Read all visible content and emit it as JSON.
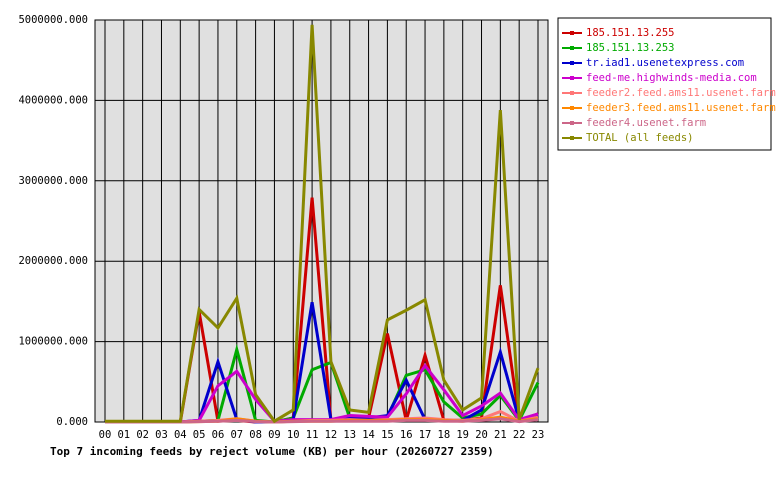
{
  "chart_data": {
    "type": "line",
    "title": "Top 7 incoming feeds by reject volume (KB) per hour (20260727 2359)",
    "categories": [
      "00",
      "01",
      "02",
      "03",
      "04",
      "05",
      "06",
      "07",
      "08",
      "09",
      "10",
      "11",
      "12",
      "13",
      "14",
      "15",
      "16",
      "17",
      "18",
      "19",
      "20",
      "21",
      "22",
      "23"
    ],
    "ylim": [
      0,
      5000000
    ],
    "yticks": [
      {
        "value": 0,
        "label": "0.000"
      },
      {
        "value": 1000000,
        "label": "1000000.000"
      },
      {
        "value": 2000000,
        "label": "2000000.000"
      },
      {
        "value": 3000000,
        "label": "3000000.000"
      },
      {
        "value": 4000000,
        "label": "4000000.000"
      },
      {
        "value": 5000000,
        "label": "5000000.000"
      }
    ],
    "grid": true,
    "legend": "right",
    "series": [
      {
        "name": "185.151.13.255",
        "color": "#cc0000",
        "values": [
          0,
          0,
          0,
          0,
          0,
          1370000,
          10000,
          20000,
          0,
          0,
          50000,
          2790000,
          20000,
          50000,
          50000,
          1100000,
          20000,
          830000,
          20000,
          20000,
          50000,
          1700000,
          20000,
          100000
        ]
      },
      {
        "name": "185.151.13.253",
        "color": "#00aa00",
        "values": [
          0,
          0,
          0,
          0,
          0,
          10000,
          20000,
          900000,
          20000,
          0,
          50000,
          650000,
          740000,
          50000,
          60000,
          60000,
          580000,
          650000,
          250000,
          50000,
          100000,
          330000,
          20000,
          490000
        ]
      },
      {
        "name": "tr.iad1.usenetexpress.com",
        "color": "#0000cc",
        "values": [
          0,
          0,
          0,
          0,
          0,
          20000,
          750000,
          30000,
          0,
          0,
          30000,
          1490000,
          30000,
          50000,
          50000,
          80000,
          520000,
          30000,
          20000,
          20000,
          150000,
          870000,
          20000,
          80000
        ]
      },
      {
        "name": "feed-me.highwinds-media.com",
        "color": "#cc00cc",
        "values": [
          0,
          0,
          0,
          0,
          0,
          20000,
          450000,
          630000,
          280000,
          10000,
          30000,
          30000,
          30000,
          80000,
          70000,
          60000,
          350000,
          700000,
          400000,
          80000,
          200000,
          360000,
          30000,
          100000
        ]
      },
      {
        "name": "feeder2.feed.ams11.usenet.farm",
        "color": "#ff7777",
        "values": [
          0,
          0,
          0,
          0,
          0,
          10000,
          20000,
          40000,
          10000,
          0,
          10000,
          20000,
          20000,
          30000,
          20000,
          30000,
          40000,
          50000,
          30000,
          20000,
          40000,
          130000,
          10000,
          60000
        ]
      },
      {
        "name": "feeder3.feed.ams11.usenet.farm",
        "color": "#ff8800",
        "values": [
          0,
          0,
          0,
          0,
          0,
          5000,
          10000,
          40000,
          10000,
          0,
          10000,
          10000,
          10000,
          20000,
          20000,
          20000,
          30000,
          30000,
          20000,
          10000,
          30000,
          60000,
          10000,
          40000
        ]
      },
      {
        "name": "feeder4.usenet.farm",
        "color": "#cc6688",
        "values": [
          0,
          0,
          0,
          0,
          0,
          5000,
          10000,
          20000,
          5000,
          0,
          5000,
          10000,
          10000,
          10000,
          10000,
          10000,
          20000,
          20000,
          10000,
          10000,
          20000,
          40000,
          5000,
          30000
        ]
      },
      {
        "name": "TOTAL (all feeds)",
        "color": "#888800",
        "values": [
          10000,
          10000,
          10000,
          10000,
          10000,
          1400000,
          1170000,
          1540000,
          340000,
          10000,
          150000,
          4940000,
          750000,
          150000,
          120000,
          1270000,
          1390000,
          1520000,
          520000,
          150000,
          300000,
          3880000,
          30000,
          670000
        ]
      }
    ]
  }
}
